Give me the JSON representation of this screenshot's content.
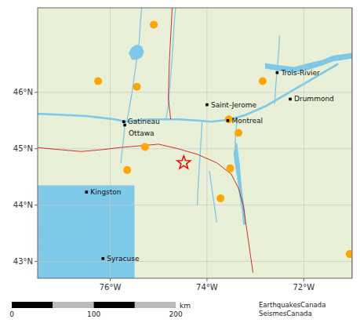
{
  "chart_data": {
    "type": "map",
    "xlim": [
      -77.5,
      -71.0
    ],
    "ylim": [
      42.7,
      47.5
    ],
    "xticks": [
      {
        "value": -76,
        "label": "76°W"
      },
      {
        "value": -74,
        "label": "74°W"
      },
      {
        "value": -72,
        "label": "72°W"
      }
    ],
    "yticks": [
      {
        "value": 43,
        "label": "43°N"
      },
      {
        "value": 44,
        "label": "44°N"
      },
      {
        "value": 45,
        "label": "45°N"
      },
      {
        "value": 46,
        "label": "46°N"
      }
    ],
    "grid": true,
    "land": {
      "color": "#e8f0d8"
    },
    "water": {
      "color": "#7ec8e8",
      "polygons": [
        {
          "x": [
            -77.5,
            -75.5,
            -75.5,
            -77.5
          ],
          "y": [
            42.7,
            42.7,
            44.35,
            44.35
          ]
        },
        {
          "x": [
            -77.5,
            -76.8,
            -76.4,
            -76.1,
            -75.9,
            -75.85,
            -76.0,
            -76.3,
            -76.6,
            -76.8,
            -77.0,
            -77.2,
            -77.4,
            -77.5
          ],
          "y": [
            43.2,
            43.62,
            43.7,
            43.75,
            43.9,
            44.1,
            44.2,
            44.3,
            44.32,
            44.25,
            44.1,
            43.9,
            43.6,
            43.4
          ]
        },
        {
          "x": [
            -77.5,
            -76.8,
            -76.5,
            -76.0,
            -75.9,
            -75.5,
            -75.5,
            -77.5
          ],
          "y": [
            42.7,
            43.3,
            43.5,
            43.65,
            43.85,
            44.0,
            42.7,
            42.7
          ]
        },
        {
          "x": [
            -76.7,
            -76.6,
            -76.45,
            -76.4,
            -76.5,
            -76.65,
            -76.75
          ],
          "y": [
            43.52,
            43.5,
            43.55,
            43.7,
            43.82,
            43.8,
            43.68
          ]
        },
        {
          "x": [
            -73.42,
            -73.45,
            -73.42,
            -73.38,
            -73.35,
            -73.32,
            -73.28,
            -73.25,
            -73.2,
            -73.22,
            -73.25,
            -73.28,
            -73.3,
            -73.32,
            -73.35,
            -73.38
          ],
          "y": [
            45.1,
            44.9,
            44.7,
            44.5,
            44.3,
            44.1,
            43.9,
            43.65,
            43.65,
            43.9,
            44.1,
            44.3,
            44.5,
            44.7,
            44.9,
            45.1
          ]
        },
        {
          "x": [
            -75.55,
            -75.45,
            -75.35,
            -75.3,
            -75.35,
            -75.45,
            -75.55,
            -75.62
          ],
          "y": [
            46.58,
            46.58,
            46.62,
            46.72,
            46.82,
            46.85,
            46.8,
            46.7
          ]
        },
        {
          "x": [
            -72.8,
            -72.5,
            -72.2,
            -71.9,
            -71.6,
            -71.4,
            -71.0,
            -71.0,
            -71.4,
            -71.6,
            -71.9,
            -72.2,
            -72.5,
            -72.8
          ],
          "y": [
            46.42,
            46.38,
            46.35,
            46.4,
            46.48,
            46.55,
            46.6,
            46.7,
            46.65,
            46.58,
            46.52,
            46.45,
            46.48,
            46.52
          ]
        }
      ]
    },
    "rivers": {
      "color": "#7ec8e8",
      "lines": [
        {
          "x": [
            -77.5,
            -77.0,
            -76.5,
            -76.2,
            -75.9,
            -75.7,
            -75.5,
            -75.2,
            -74.9,
            -74.6,
            -74.2,
            -73.9,
            -73.7,
            -73.5
          ],
          "y": [
            45.62,
            45.6,
            45.58,
            45.55,
            45.52,
            45.48,
            45.5,
            45.52,
            45.52,
            45.52,
            45.5,
            45.48,
            45.5,
            45.52
          ]
        },
        {
          "x": [
            -73.5,
            -73.2,
            -72.8,
            -72.3,
            -71.8,
            -71.3
          ],
          "y": [
            45.52,
            45.6,
            45.75,
            46.0,
            46.25,
            46.5
          ]
        },
        {
          "x": [
            -73.38,
            -73.4,
            -73.42
          ],
          "y": [
            45.52,
            45.3,
            45.1
          ]
        },
        {
          "x": [
            -74.1,
            -74.12,
            -74.15,
            -74.18,
            -74.2
          ],
          "y": [
            45.5,
            45.2,
            44.8,
            44.4,
            44.0
          ]
        },
        {
          "x": [
            -75.7,
            -75.72,
            -75.75,
            -75.78
          ],
          "y": [
            45.42,
            45.2,
            45.0,
            44.75
          ]
        },
        {
          "x": [
            -75.35,
            -75.38,
            -75.4,
            -75.45,
            -75.5,
            -75.55,
            -75.6,
            -75.65
          ],
          "y": [
            47.5,
            47.2,
            46.9,
            46.6,
            46.3,
            46.0,
            45.75,
            45.52
          ]
        },
        {
          "x": [
            -74.65,
            -74.68,
            -74.7,
            -74.72,
            -74.75,
            -74.78,
            -74.8,
            -74.85
          ],
          "y": [
            47.5,
            47.2,
            46.9,
            46.6,
            46.3,
            46.0,
            45.75,
            45.52
          ]
        },
        {
          "x": [
            -72.5,
            -72.52,
            -72.55,
            -72.58,
            -72.6
          ],
          "y": [
            47.0,
            46.7,
            46.4,
            46.1,
            45.8
          ]
        },
        {
          "x": [
            -73.95,
            -73.9,
            -73.85,
            -73.8
          ],
          "y": [
            44.6,
            44.3,
            44.0,
            43.7
          ]
        }
      ]
    },
    "borders": {
      "color": "#cc0000",
      "lines": [
        {
          "x": [
            -77.5,
            -77.0,
            -76.6,
            -76.2,
            -75.8,
            -75.4,
            -75.0,
            -74.6,
            -74.2,
            -73.8,
            -73.5,
            -73.35,
            -73.25,
            -73.2,
            -73.15,
            -73.1,
            -73.05
          ],
          "y": [
            45.02,
            44.98,
            44.95,
            44.98,
            45.02,
            45.05,
            45.08,
            45.0,
            44.9,
            44.75,
            44.55,
            44.3,
            44.0,
            43.7,
            43.4,
            43.1,
            42.8
          ]
        },
        {
          "x": [
            -74.72,
            -74.75,
            -74.78,
            -74.8,
            -74.75
          ],
          "y": [
            47.5,
            47.0,
            46.5,
            45.9,
            45.52
          ]
        },
        {
          "x": [
            -71.0,
            -71.0
          ],
          "y": [
            47.5,
            42.7
          ]
        }
      ]
    },
    "earthquakes": {
      "color": "#FFA500",
      "marker": "circle",
      "x": [
        -75.1,
        -76.25,
        -75.45,
        -72.85,
        -73.55,
        -73.35,
        -75.28,
        -75.65,
        -73.52,
        -73.72,
        -71.05
      ],
      "y": [
        47.2,
        46.2,
        46.1,
        46.2,
        45.52,
        45.28,
        45.03,
        44.62,
        44.65,
        44.12,
        43.13
      ]
    },
    "star": {
      "color": "red",
      "marker": "star",
      "x": -74.48,
      "y": 44.75
    },
    "cities": {
      "color": "black",
      "marker": "square",
      "names": [
        "Gatineau",
        "Ottawa",
        "Montreal",
        "Saint-Jerome",
        "Kingston",
        "Syracuse",
        "Trois-Rivie⁠r",
        "Drummond⁠"
      ],
      "x": [
        -75.72,
        -75.7,
        -73.57,
        -74.0,
        -76.49,
        -76.15,
        -72.55,
        -72.28
      ],
      "y": [
        45.48,
        45.42,
        45.5,
        45.78,
        44.23,
        43.05,
        46.35,
        45.88
      ]
    },
    "scale_bar": {
      "xlim": [
        0,
        220
      ],
      "segments": [
        0,
        50,
        100,
        150,
        200
      ],
      "xticks": [
        0,
        100,
        200
      ],
      "label": "km"
    },
    "credit": [
      "EarthquakesCanada",
      "SeismesCanada"
    ]
  }
}
